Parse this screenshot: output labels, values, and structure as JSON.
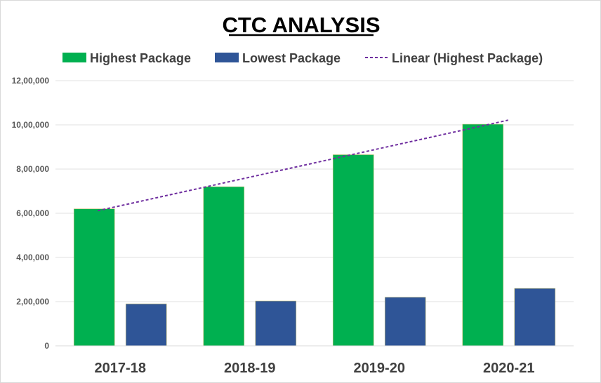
{
  "chart_data": {
    "type": "bar",
    "title": "CTC ANALYSIS",
    "categories": [
      "2017-18",
      "2018-19",
      "2019-20",
      "2020-21"
    ],
    "series": [
      {
        "name": "Highest Package",
        "color": "#00b050",
        "values": [
          620000,
          720000,
          865000,
          1003000
        ]
      },
      {
        "name": "Lowest Package",
        "color": "#2f5597",
        "values": [
          190000,
          203000,
          220000,
          260000
        ]
      }
    ],
    "trendline": {
      "name": "Linear (Highest Package)",
      "type": "linear",
      "series": "Highest Package",
      "color": "#7030a0"
    },
    "yticks": [
      "0",
      "2,00,000",
      "4,00,000",
      "6,00,000",
      "8,00,000",
      "10,00,000",
      "12,00,000"
    ],
    "ylim": [
      0,
      1200000
    ],
    "grid": true,
    "legend_position": "top",
    "xlabel": "",
    "ylabel": ""
  }
}
